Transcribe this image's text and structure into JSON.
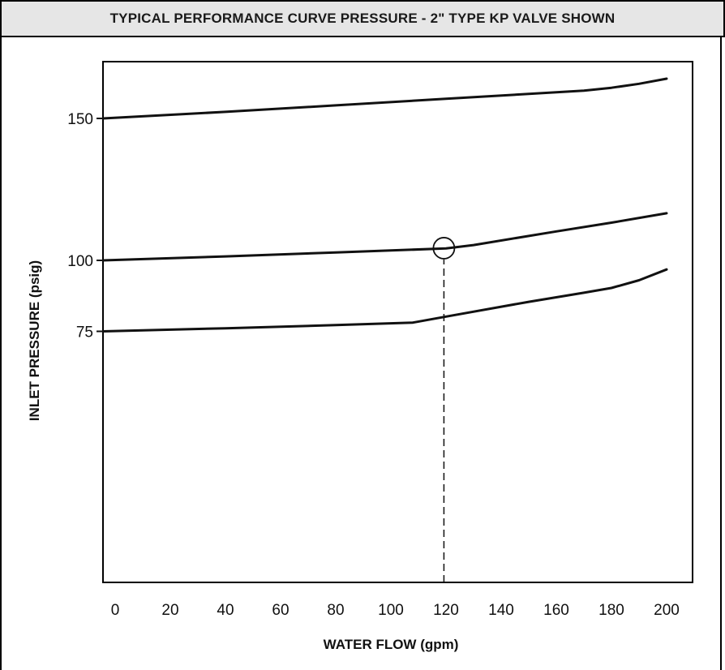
{
  "header": {
    "title": "TYPICAL PERFORMANCE CURVE PRESSURE - 2\" TYPE KP VALVE SHOWN"
  },
  "chart_data": {
    "type": "line",
    "title": "TYPICAL PERFORMANCE CURVE PRESSURE - 2\" TYPE KP VALVE SHOWN",
    "xlabel": "WATER FLOW (gpm)",
    "ylabel": "INLET PRESSURE (psig)",
    "xlim": [
      0,
      200
    ],
    "ylim": [
      0,
      170
    ],
    "grid": false,
    "x_ticks": [
      "0",
      "20",
      "40",
      "60",
      "80",
      "100",
      "120",
      "140",
      "160",
      "180",
      "200"
    ],
    "y_ticks": [
      {
        "value": 150,
        "label": "150"
      },
      {
        "value": 100,
        "label": "100"
      },
      {
        "value": 75,
        "label": "75"
      }
    ],
    "series": [
      {
        "x": [
          0,
          40,
          80,
          120,
          160,
          170,
          180,
          190,
          200
        ],
        "y": [
          150,
          152.3,
          154.6,
          156.9,
          159.2,
          159.8,
          160.8,
          162.2,
          164.0
        ]
      },
      {
        "x": [
          0,
          40,
          80,
          120,
          130,
          160,
          180,
          200
        ],
        "y": [
          100,
          101.4,
          102.8,
          104.2,
          105.4,
          110.2,
          113.3,
          116.6
        ]
      },
      {
        "x": [
          0,
          40,
          80,
          108,
          120,
          150,
          170,
          180,
          190,
          200
        ],
        "y": [
          75,
          76.1,
          77.2,
          78.1,
          80.2,
          85.4,
          88.6,
          90.3,
          93.0,
          96.8
        ]
      }
    ],
    "markers": [
      {
        "type": "circle",
        "x": 121,
        "y": 104.3
      }
    ],
    "reference_lines": [
      {
        "type": "vertical",
        "style": "dashed",
        "x": 121,
        "y_from": 0,
        "y_to": 104.3
      }
    ]
  }
}
